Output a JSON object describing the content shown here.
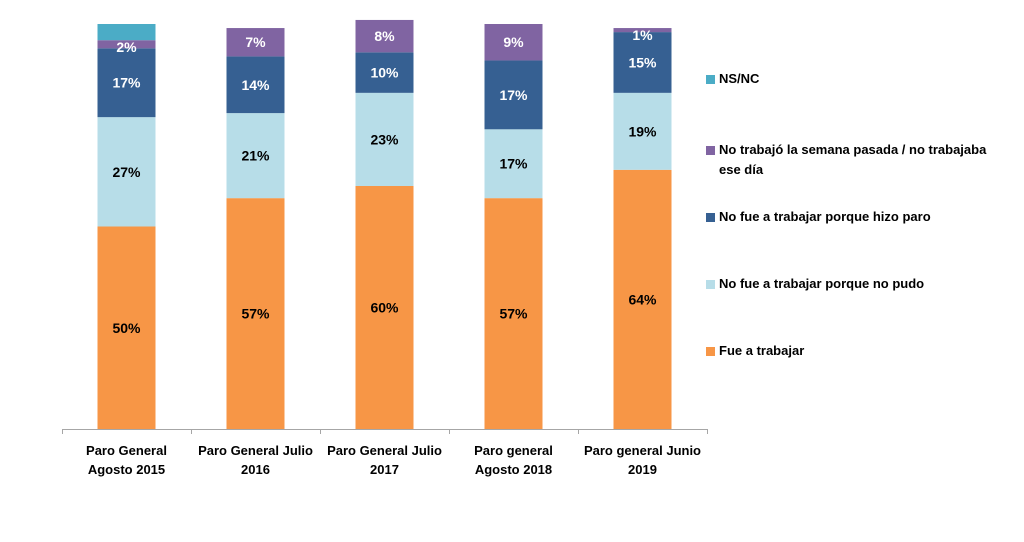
{
  "chart_data": {
    "type": "bar",
    "stacked": true,
    "orientation": "vertical",
    "title": "",
    "xlabel": "",
    "ylabel": "",
    "ylim": [
      0,
      100
    ],
    "grid": false,
    "legend_position": "right",
    "categories": [
      [
        "Paro General",
        "Agosto 2015"
      ],
      [
        "Paro General Julio",
        "2016"
      ],
      [
        "Paro General Julio",
        "2017"
      ],
      [
        "Paro general",
        "Agosto 2018"
      ],
      [
        "Paro general Junio",
        "2019"
      ]
    ],
    "series": [
      {
        "name": "Fue a trabajar",
        "color": "#F79646",
        "label_color": "#000000",
        "values": [
          50,
          57,
          60,
          57,
          64
        ],
        "labels": [
          "50%",
          "57%",
          "60%",
          "57%",
          "64%"
        ]
      },
      {
        "name": "No fue a trabajar porque no pudo",
        "color": "#B7DDE8",
        "label_color": "#000000",
        "values": [
          27,
          21,
          23,
          17,
          19
        ],
        "labels": [
          "27%",
          "21%",
          "23%",
          "17%",
          "19%"
        ]
      },
      {
        "name": "No fue a trabajar porque hizo paro",
        "color": "#366092",
        "label_color": "#ffffff",
        "values": [
          17,
          14,
          10,
          17,
          15
        ],
        "labels": [
          "17%",
          "14%",
          "10%",
          "17%",
          "15%"
        ]
      },
      {
        "name": "No trabajó la semana pasada / no trabajaba ese día",
        "color": "#8064A2",
        "label_color": "#ffffff",
        "values": [
          2,
          7,
          8,
          9,
          1
        ],
        "labels": [
          "2%",
          "7%",
          "8%",
          "9%",
          "1%"
        ]
      },
      {
        "name": "NS/NC",
        "color": "#4BACC6",
        "label_color": "#ffffff",
        "values": [
          4,
          0,
          0,
          0,
          0
        ],
        "labels": [
          "",
          "",
          "",
          "",
          ""
        ]
      }
    ]
  },
  "legend": {
    "items": [
      {
        "label_lines": [
          "NS/NC"
        ],
        "color": "#4BACC6"
      },
      {
        "label_lines": [
          "No trabajó la semana pasada / no trabajaba",
          "ese día"
        ],
        "color": "#8064A2"
      },
      {
        "label_lines": [
          "No fue a trabajar porque hizo paro"
        ],
        "color": "#366092"
      },
      {
        "label_lines": [
          "No fue a trabajar porque no pudo"
        ],
        "color": "#B7DDE8"
      },
      {
        "label_lines": [
          "Fue a trabajar"
        ],
        "color": "#F79646"
      }
    ]
  }
}
